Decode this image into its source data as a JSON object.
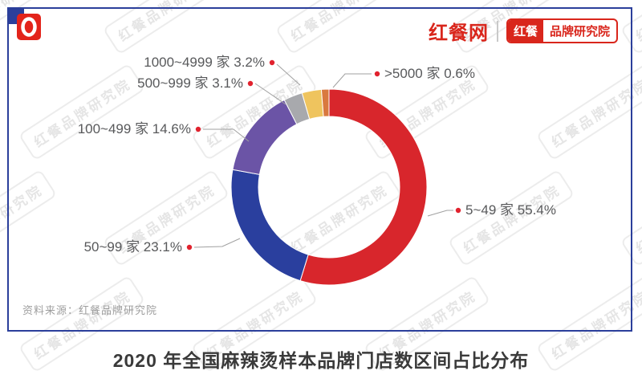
{
  "header": {
    "site_name": "红餐网",
    "badge_left": "红餐",
    "badge_right": "品牌研究院"
  },
  "watermark": {
    "text": "红餐品牌研究院"
  },
  "source": "资料来源：红餐品牌研究院",
  "title": "2020 年全国麻辣烫样本品牌门店数区间占比分布",
  "chart_data": {
    "type": "pie",
    "subtype": "donut",
    "title": "2020 年全国麻辣烫样本品牌门店数区间占比分布",
    "unit": "%",
    "categories": [
      "5~49 家",
      "50~99 家",
      "100~499 家",
      "500~999 家",
      "1000~4999 家",
      ">5000 家"
    ],
    "values": [
      55.4,
      23.1,
      14.6,
      3.1,
      3.2,
      0.6
    ],
    "colors": [
      "#D8262C",
      "#2A3F9E",
      "#6B54A6",
      "#A8A9AD",
      "#EFC45E",
      "#D9793F"
    ],
    "leader_line_color": "#A0A0A0",
    "label_dot_color": "#E1222E",
    "layout": {
      "start_angle_deg": 0,
      "clockwise": true,
      "min_angle_deg": 4.5,
      "inner_radius_ratio": 0.72,
      "label_position": "outside-leader-lines",
      "legend": "none",
      "source_note": "资料来源：红餐品牌研究院"
    }
  }
}
